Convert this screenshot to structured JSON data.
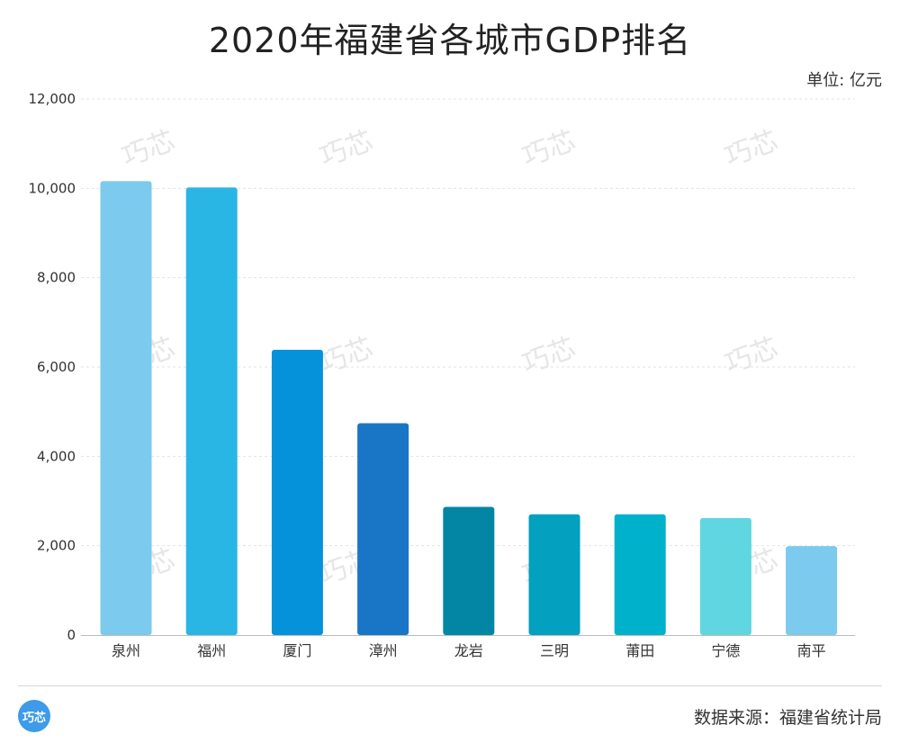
{
  "header": {
    "title": "2020年福建省各城市GDP排名",
    "unit": "单位: 亿元"
  },
  "footer": {
    "logo_text": "巧芯",
    "source": "数据来源：福建省统计局"
  },
  "watermark_text": "巧芯",
  "chart_data": {
    "type": "bar",
    "title": "2020年福建省各城市GDP排名",
    "ylabel": "",
    "xlabel": "",
    "ylim": [
      0,
      12000
    ],
    "yticks": [
      0,
      2000,
      4000,
      6000,
      8000,
      10000,
      12000
    ],
    "ytick_labels": [
      "0",
      "2,000",
      "4,000",
      "6,000",
      "8,000",
      "10,000",
      "12,000"
    ],
    "grid": true,
    "categories": [
      "泉州",
      "福州",
      "厦门",
      "漳州",
      "龙岩",
      "三明",
      "莆田",
      "宁德",
      "南平"
    ],
    "values": [
      10159,
      10020,
      6384,
      4741,
      2870,
      2702,
      2703,
      2619,
      1992
    ],
    "colors": [
      "#7ccaed",
      "#29b6e5",
      "#0592db",
      "#1976c6",
      "#0386a3",
      "#03a0bf",
      "#00b1cc",
      "#5fd6e0",
      "#7ccaed"
    ]
  }
}
